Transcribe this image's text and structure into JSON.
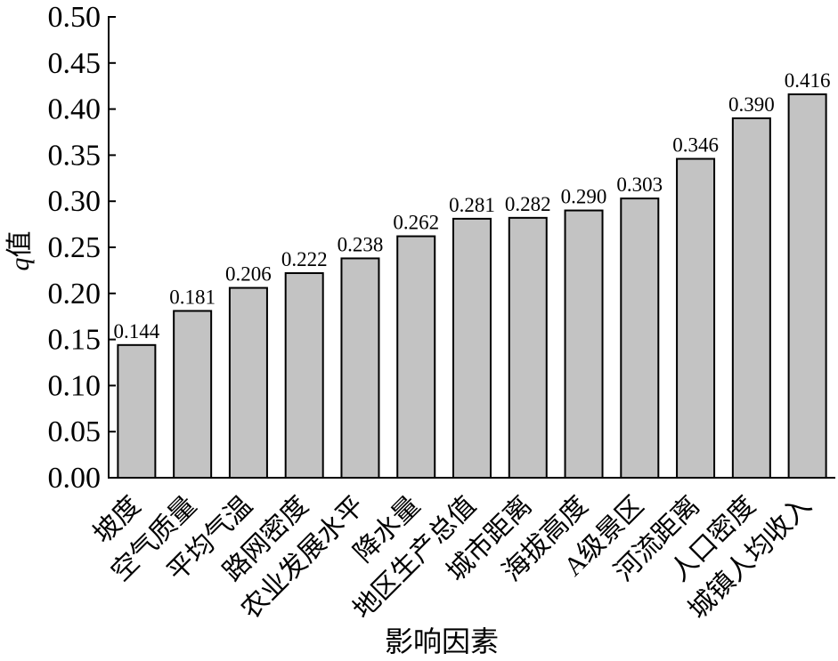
{
  "chart_data": {
    "type": "bar",
    "categories": [
      "坡度",
      "空气质量",
      "平均气温",
      "路网密度",
      "农业发展水平",
      "降水量",
      "地区生产总值",
      "城市距离",
      "海拔高度",
      "A级景区",
      "河流距离",
      "人口密度",
      "城镇人均收入"
    ],
    "values": [
      0.144,
      0.181,
      0.206,
      0.222,
      0.238,
      0.262,
      0.281,
      0.282,
      0.29,
      0.303,
      0.346,
      0.39,
      0.416
    ],
    "xlabel": "影响因素",
    "ylabel": "q值",
    "ylim": [
      0,
      0.5
    ],
    "yticks": [
      0,
      0.05,
      0.1,
      0.15,
      0.2,
      0.25,
      0.3,
      0.35,
      0.4,
      0.45,
      0.5
    ],
    "data_labels": true,
    "grid": false,
    "bar_color": "#c3c3c3"
  }
}
